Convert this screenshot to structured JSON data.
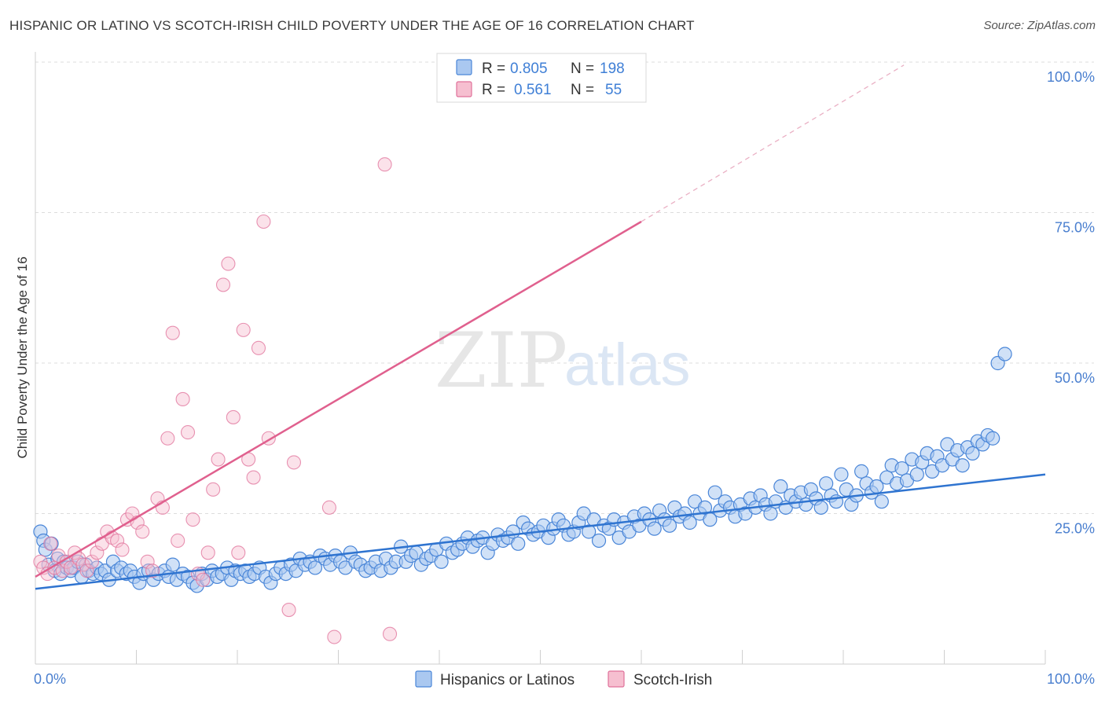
{
  "title": "HISPANIC OR LATINO VS SCOTCH-IRISH CHILD POVERTY UNDER THE AGE OF 16 CORRELATION CHART",
  "source": "Source: ZipAtlas.com",
  "watermark": {
    "zip": "ZIP",
    "atlas": "atlas"
  },
  "colors": {
    "blue": "#4a86d8",
    "blue_fill": "#aac8f0",
    "pink": "#e0709a",
    "pink_fill": "#f6bfd0",
    "axis_text": "#4a7fcf"
  },
  "legend": {
    "rows": [
      {
        "r_label": "R =",
        "r_value": "0.805",
        "n_label": "N =",
        "n_value": "198"
      },
      {
        "r_label": "R =",
        "r_value": "0.561",
        "n_label": "N =",
        "n_value": "55"
      }
    ]
  },
  "bottom_legend": [
    "Hispanics or Latinos",
    "Scotch-Irish"
  ],
  "chart_data": {
    "type": "scatter",
    "ylabel": "Child Poverty Under the Age of 16",
    "xlim": [
      0,
      100
    ],
    "ylim": [
      0,
      100
    ],
    "x_tick_labels": [
      "0.0%",
      "100.0%"
    ],
    "y_ticks": [
      25,
      50,
      75,
      100
    ],
    "y_tick_labels": [
      "25.0%",
      "50.0%",
      "75.0%",
      "100.0%"
    ],
    "grid": "horizontal dashed",
    "legend_position": "top-center",
    "series": [
      {
        "name": "Hispanics or Latinos",
        "color": "#4a86d8",
        "r": 0.805,
        "n": 198,
        "trend": {
          "x": [
            0,
            100
          ],
          "y": [
            12.5,
            31.5
          ]
        },
        "points": [
          [
            0.5,
            22
          ],
          [
            0.8,
            20.5
          ],
          [
            1,
            19
          ],
          [
            1.3,
            16.5
          ],
          [
            1.6,
            20
          ],
          [
            1.9,
            15.5
          ],
          [
            2.2,
            17.5
          ],
          [
            2.5,
            15
          ],
          [
            2.8,
            17
          ],
          [
            3.1,
            16
          ],
          [
            3.5,
            15.5
          ],
          [
            3.8,
            16
          ],
          [
            4.2,
            17
          ],
          [
            4.6,
            14.5
          ],
          [
            5,
            16.5
          ],
          [
            5.3,
            15.5
          ],
          [
            5.7,
            15
          ],
          [
            6.1,
            16
          ],
          [
            6.5,
            15
          ],
          [
            6.9,
            15.5
          ],
          [
            7.3,
            14
          ],
          [
            7.7,
            17
          ],
          [
            8.1,
            15.5
          ],
          [
            8.5,
            16
          ],
          [
            9,
            15
          ],
          [
            9.4,
            15.5
          ],
          [
            9.8,
            14.5
          ],
          [
            10.3,
            13.5
          ],
          [
            10.7,
            15
          ],
          [
            11.2,
            15.5
          ],
          [
            11.7,
            14
          ],
          [
            12.2,
            15
          ],
          [
            12.8,
            15.5
          ],
          [
            13.2,
            14.5
          ],
          [
            13.6,
            16.5
          ],
          [
            14,
            14
          ],
          [
            14.6,
            15
          ],
          [
            15.1,
            14.5
          ],
          [
            15.6,
            13.5
          ],
          [
            16,
            13
          ],
          [
            16.5,
            15
          ],
          [
            17,
            14
          ],
          [
            17.5,
            15.5
          ],
          [
            18,
            14.5
          ],
          [
            18.5,
            15
          ],
          [
            19,
            16
          ],
          [
            19.4,
            14
          ],
          [
            19.8,
            15.5
          ],
          [
            20.3,
            15
          ],
          [
            20.8,
            15.5
          ],
          [
            21.2,
            14.5
          ],
          [
            21.7,
            15
          ],
          [
            22.2,
            16
          ],
          [
            22.8,
            14.5
          ],
          [
            23.3,
            13.5
          ],
          [
            23.8,
            15
          ],
          [
            24.3,
            16
          ],
          [
            24.8,
            15
          ],
          [
            25.3,
            16.5
          ],
          [
            25.8,
            15.5
          ],
          [
            26.2,
            17.5
          ],
          [
            26.7,
            16.5
          ],
          [
            27.2,
            17
          ],
          [
            27.7,
            16
          ],
          [
            28.2,
            18
          ],
          [
            28.7,
            17.5
          ],
          [
            29.2,
            16.5
          ],
          [
            29.7,
            18
          ],
          [
            30.2,
            17
          ],
          [
            30.7,
            16
          ],
          [
            31.2,
            18.5
          ],
          [
            31.7,
            17
          ],
          [
            32.2,
            16.5
          ],
          [
            32.7,
            15.5
          ],
          [
            33.2,
            16
          ],
          [
            33.7,
            17
          ],
          [
            34.2,
            15.5
          ],
          [
            34.7,
            17.5
          ],
          [
            35.2,
            16
          ],
          [
            35.7,
            17
          ],
          [
            36.2,
            19.5
          ],
          [
            36.7,
            17
          ],
          [
            37.2,
            18
          ],
          [
            37.7,
            18.5
          ],
          [
            38.2,
            16.5
          ],
          [
            38.7,
            17.5
          ],
          [
            39.2,
            18
          ],
          [
            39.7,
            19
          ],
          [
            40.2,
            17
          ],
          [
            40.7,
            20
          ],
          [
            41.3,
            18.5
          ],
          [
            41.8,
            19
          ],
          [
            42.3,
            20
          ],
          [
            42.8,
            21
          ],
          [
            43.3,
            19.5
          ],
          [
            43.8,
            20.5
          ],
          [
            44.3,
            21
          ],
          [
            44.8,
            18.5
          ],
          [
            45.3,
            20
          ],
          [
            45.8,
            21.5
          ],
          [
            46.3,
            20.5
          ],
          [
            46.8,
            21
          ],
          [
            47.3,
            22
          ],
          [
            47.8,
            20
          ],
          [
            48.3,
            23.5
          ],
          [
            48.8,
            22.5
          ],
          [
            49.3,
            21.5
          ],
          [
            49.8,
            22
          ],
          [
            50.3,
            23
          ],
          [
            50.8,
            21
          ],
          [
            51.3,
            22.5
          ],
          [
            51.8,
            24
          ],
          [
            52.3,
            23
          ],
          [
            52.8,
            21.5
          ],
          [
            53.3,
            22
          ],
          [
            53.8,
            23.5
          ],
          [
            54.3,
            25
          ],
          [
            54.8,
            22
          ],
          [
            55.3,
            24
          ],
          [
            55.8,
            20.5
          ],
          [
            56.3,
            23
          ],
          [
            56.8,
            22.5
          ],
          [
            57.3,
            24
          ],
          [
            57.8,
            21
          ],
          [
            58.3,
            23.5
          ],
          [
            58.8,
            22
          ],
          [
            59.3,
            24.5
          ],
          [
            59.8,
            23
          ],
          [
            60.3,
            25
          ],
          [
            60.8,
            24
          ],
          [
            61.3,
            22.5
          ],
          [
            61.8,
            25.5
          ],
          [
            62.3,
            24
          ],
          [
            62.8,
            23
          ],
          [
            63.3,
            26
          ],
          [
            63.8,
            24.5
          ],
          [
            64.3,
            25
          ],
          [
            64.8,
            23.5
          ],
          [
            65.3,
            27
          ],
          [
            65.8,
            25
          ],
          [
            66.3,
            26
          ],
          [
            66.8,
            24
          ],
          [
            67.3,
            28.5
          ],
          [
            67.8,
            25.5
          ],
          [
            68.3,
            27
          ],
          [
            68.8,
            26
          ],
          [
            69.3,
            24.5
          ],
          [
            69.8,
            26.5
          ],
          [
            70.3,
            25
          ],
          [
            70.8,
            27.5
          ],
          [
            71.3,
            26
          ],
          [
            71.8,
            28
          ],
          [
            72.3,
            26.5
          ],
          [
            72.8,
            25
          ],
          [
            73.3,
            27
          ],
          [
            73.8,
            29.5
          ],
          [
            74.3,
            26
          ],
          [
            74.8,
            28
          ],
          [
            75.3,
            27
          ],
          [
            75.8,
            28.5
          ],
          [
            76.3,
            26.5
          ],
          [
            76.8,
            29
          ],
          [
            77.3,
            27.5
          ],
          [
            77.8,
            26
          ],
          [
            78.3,
            30
          ],
          [
            78.8,
            28
          ],
          [
            79.3,
            27
          ],
          [
            79.8,
            31.5
          ],
          [
            80.3,
            29
          ],
          [
            80.8,
            26.5
          ],
          [
            81.3,
            28
          ],
          [
            81.8,
            32
          ],
          [
            82.3,
            30
          ],
          [
            82.8,
            28.5
          ],
          [
            83.3,
            29.5
          ],
          [
            83.8,
            27
          ],
          [
            84.3,
            31
          ],
          [
            84.8,
            33
          ],
          [
            85.3,
            30
          ],
          [
            85.8,
            32.5
          ],
          [
            86.3,
            30.5
          ],
          [
            86.8,
            34
          ],
          [
            87.3,
            31.5
          ],
          [
            87.8,
            33.5
          ],
          [
            88.3,
            35
          ],
          [
            88.8,
            32
          ],
          [
            89.3,
            34.5
          ],
          [
            89.8,
            33
          ],
          [
            90.3,
            36.5
          ],
          [
            90.8,
            34
          ],
          [
            91.3,
            35.5
          ],
          [
            91.8,
            33
          ],
          [
            92.3,
            36
          ],
          [
            92.8,
            35
          ],
          [
            93.3,
            37
          ],
          [
            93.8,
            36.5
          ],
          [
            94.3,
            38
          ],
          [
            94.8,
            37.5
          ],
          [
            95.3,
            50
          ],
          [
            96.0,
            51.5
          ]
        ]
      },
      {
        "name": "Scotch-Irish",
        "color": "#e0709a",
        "r": 0.561,
        "n": 55,
        "trend": {
          "x": [
            0,
            60
          ],
          "y": [
            14.5,
            73.5
          ]
        },
        "trend_extension": {
          "x": [
            60,
            86
          ],
          "y": [
            73.5,
            99.5
          ]
        },
        "points": [
          [
            0.5,
            17
          ],
          [
            0.8,
            16
          ],
          [
            1.2,
            15
          ],
          [
            1.5,
            20
          ],
          [
            1.9,
            16
          ],
          [
            2.3,
            18
          ],
          [
            2.7,
            15.5
          ],
          [
            3.1,
            17
          ],
          [
            3.5,
            16
          ],
          [
            3.9,
            18.5
          ],
          [
            4.3,
            17.5
          ],
          [
            4.7,
            16.5
          ],
          [
            5.1,
            15.5
          ],
          [
            5.6,
            17
          ],
          [
            6.1,
            18.5
          ],
          [
            6.6,
            20
          ],
          [
            7.1,
            22
          ],
          [
            7.6,
            21
          ],
          [
            8.1,
            20.5
          ],
          [
            8.6,
            19
          ],
          [
            9.1,
            24
          ],
          [
            9.6,
            25
          ],
          [
            10.1,
            23.5
          ],
          [
            10.6,
            22
          ],
          [
            11.1,
            17
          ],
          [
            11.6,
            15.5
          ],
          [
            12.1,
            27.5
          ],
          [
            12.6,
            26
          ],
          [
            13.1,
            37.5
          ],
          [
            13.6,
            55
          ],
          [
            14.1,
            20.5
          ],
          [
            14.6,
            44
          ],
          [
            15.1,
            38.5
          ],
          [
            15.6,
            24
          ],
          [
            16.1,
            15
          ],
          [
            16.6,
            14
          ],
          [
            17.1,
            18.5
          ],
          [
            17.6,
            29
          ],
          [
            18.1,
            34
          ],
          [
            18.6,
            63
          ],
          [
            19.1,
            66.5
          ],
          [
            19.6,
            41
          ],
          [
            20.1,
            18.5
          ],
          [
            20.6,
            55.5
          ],
          [
            21.1,
            34
          ],
          [
            21.6,
            31
          ],
          [
            22.1,
            52.5
          ],
          [
            22.6,
            73.5
          ],
          [
            23.1,
            37.5
          ],
          [
            25.1,
            9
          ],
          [
            25.6,
            33.5
          ],
          [
            29.1,
            26
          ],
          [
            29.6,
            4.5
          ],
          [
            34.6,
            83
          ],
          [
            35.1,
            5
          ]
        ]
      }
    ]
  }
}
